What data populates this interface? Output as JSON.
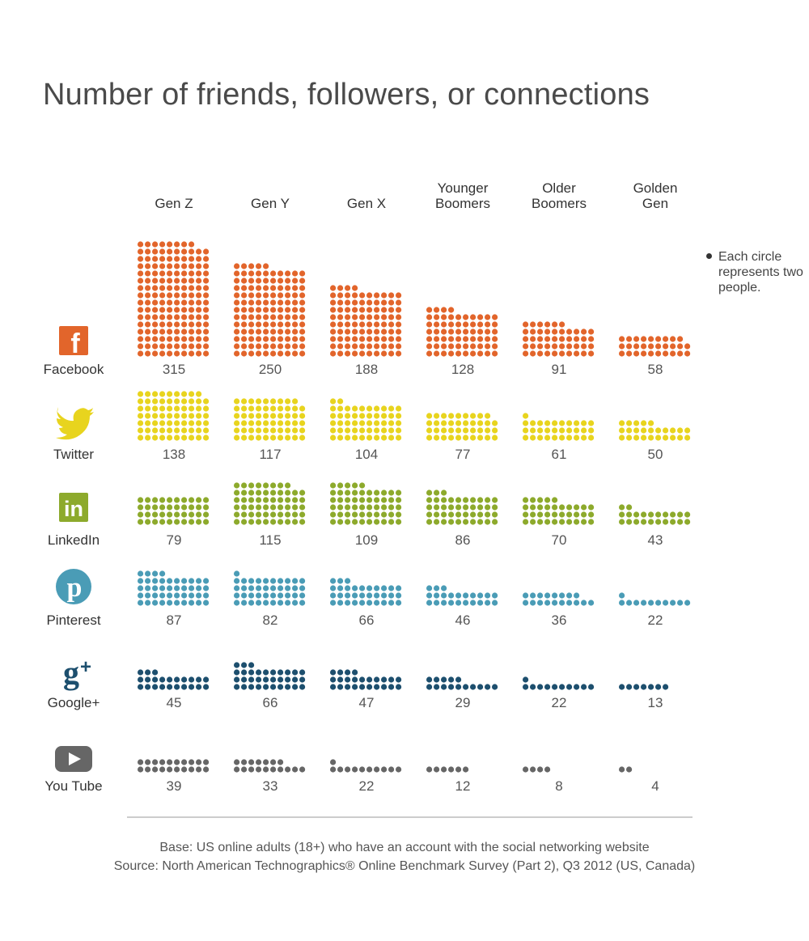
{
  "title": "Number of friends, followers, or connections",
  "legend_note": "Each circle represents two people.",
  "footnote": {
    "base": "Base: US online adults (18+) who have an account with the social networking website",
    "source": "Source: North American Technographics® Online Benchmark Survey (Part 2), Q3 2012 (US, Canada)"
  },
  "chart_data": {
    "type": "pictogram",
    "unit": "Each circle represents two people.",
    "categories": [
      "Gen Z",
      "Gen Y",
      "Gen X",
      "Younger Boomers",
      "Older Boomers",
      "Golden Gen"
    ],
    "category_lines": [
      [
        "Gen Z"
      ],
      [
        "Gen Y"
      ],
      [
        "Gen X"
      ],
      [
        "Younger",
        "Boomers"
      ],
      [
        "Older",
        "Boomers"
      ],
      [
        "Golden",
        "Gen"
      ]
    ],
    "series": [
      {
        "name": "Facebook",
        "icon": "facebook-icon",
        "color": "#E2652B",
        "values": [
          315,
          250,
          188,
          128,
          91,
          58
        ]
      },
      {
        "name": "Twitter",
        "icon": "twitter-icon",
        "color": "#E8D41E",
        "values": [
          138,
          117,
          104,
          77,
          61,
          50
        ]
      },
      {
        "name": "LinkedIn",
        "icon": "linkedin-icon",
        "color": "#8DAA2C",
        "values": [
          79,
          115,
          109,
          86,
          70,
          43
        ]
      },
      {
        "name": "Pinterest",
        "icon": "pinterest-icon",
        "color": "#4A9CB6",
        "values": [
          87,
          82,
          66,
          46,
          36,
          22
        ]
      },
      {
        "name": "Google+",
        "icon": "googleplus-icon",
        "color": "#1D4F6E",
        "values": [
          45,
          66,
          47,
          29,
          22,
          13
        ]
      },
      {
        "name": "You Tube",
        "icon": "youtube-icon",
        "color": "#666666",
        "values": [
          39,
          33,
          22,
          12,
          8,
          4
        ]
      }
    ]
  }
}
